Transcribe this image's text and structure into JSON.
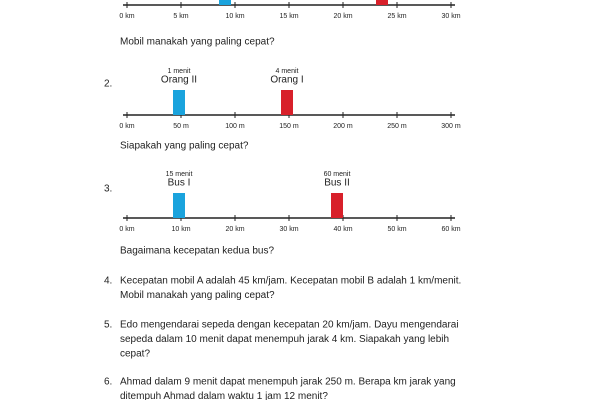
{
  "lines": [
    {
      "ticks": [
        "0 km",
        "5 km",
        "10 km",
        "15 km",
        "20 km",
        "25 km",
        "30 km"
      ],
      "question": "Mobil manakah yang paling cepat?"
    },
    {
      "number": "2.",
      "ticks": [
        "0 km",
        "50 m",
        "100 m",
        "150 m",
        "200 m",
        "250 m",
        "300 m"
      ],
      "markers": [
        {
          "time": "1 menit",
          "name": "Orang II"
        },
        {
          "time": "4 menit",
          "name": "Orang I"
        }
      ],
      "question": "Siapakah yang paling cepat?"
    },
    {
      "number": "3.",
      "ticks": [
        "0 km",
        "10 km",
        "20 km",
        "30 km",
        "40 km",
        "50 km",
        "60 km"
      ],
      "markers": [
        {
          "time": "15 menit",
          "name": "Bus I"
        },
        {
          "time": "60 menit",
          "name": "Bus II"
        }
      ],
      "question": "Bagaimana kecepatan kedua bus?"
    }
  ],
  "problems": [
    {
      "number": "4.",
      "lines": [
        "Kecepatan mobil A adalah 45 km/jam. Kecepatan mobil B adalah 1 km/menit.",
        "Mobil manakah yang paling cepat?"
      ]
    },
    {
      "number": "5.",
      "lines": [
        "Edo mengendarai sepeda dengan kecepatan 20 km/jam. Dayu mengendarai",
        "sepeda dalam 10 menit dapat menempuh jarak 4 km. Siapakah yang lebih",
        "cepat?"
      ]
    },
    {
      "number": "6.",
      "lines": [
        "Ahmad dalam 9 menit dapat menempuh jarak 250 m. Berapa km jarak yang",
        "ditempuh Ahmad dalam waktu 1 jam 12 menit?"
      ]
    }
  ]
}
